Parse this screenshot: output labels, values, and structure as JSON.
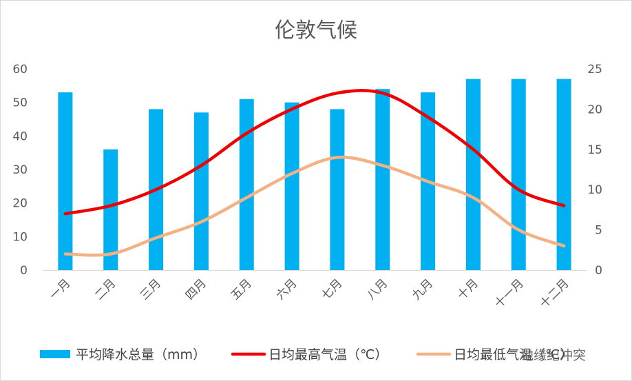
{
  "chart_data": {
    "type": "bar+line",
    "title": "伦敦气候",
    "categories": [
      "一月",
      "二月",
      "三月",
      "四月",
      "五月",
      "六月",
      "七月",
      "八月",
      "九月",
      "十月",
      "十一月",
      "十二月"
    ],
    "left_axis": {
      "min": 0,
      "max": 60,
      "step": 10,
      "ticks": [
        "0",
        "10",
        "20",
        "30",
        "40",
        "50",
        "60"
      ]
    },
    "right_axis": {
      "min": 0,
      "max": 25,
      "step": 5,
      "ticks": [
        "0",
        "5",
        "10",
        "15",
        "20",
        "25"
      ]
    },
    "series": [
      {
        "name": "平均降水总量（mm）",
        "kind": "bar",
        "axis": "left",
        "color": "#00b0f0",
        "values": [
          53,
          36,
          48,
          47,
          51,
          50,
          48,
          54,
          53,
          57,
          57,
          57
        ]
      },
      {
        "name": "日均最高气温（℃）",
        "kind": "line",
        "axis": "right",
        "color": "#ee0000",
        "values": [
          7,
          8,
          10,
          13,
          17,
          20,
          22,
          22,
          19,
          15,
          10,
          8
        ]
      },
      {
        "name": "日均最低气温（℃）",
        "kind": "line",
        "axis": "right",
        "color": "#f4b183",
        "values": [
          2,
          2,
          4,
          6,
          9,
          12,
          14,
          13,
          11,
          9,
          5,
          3
        ]
      }
    ],
    "grid": false,
    "legend_position": "bottom"
  },
  "watermark": "地缘纪冲突"
}
